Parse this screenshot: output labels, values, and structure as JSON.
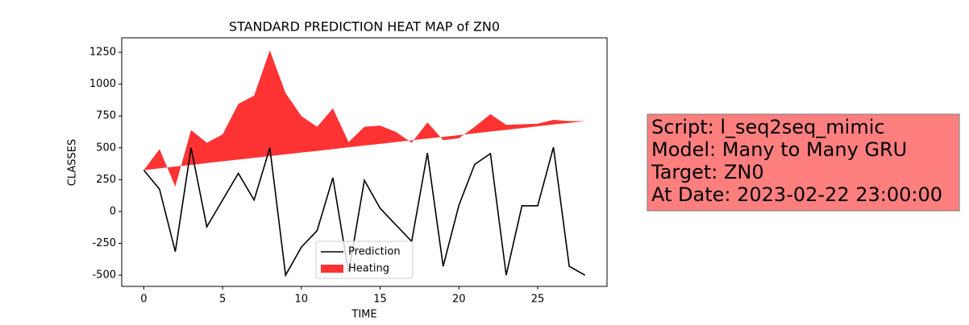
{
  "chart_data": {
    "type": "line-area",
    "title": "STANDARD PREDICTION HEAT MAP of ZN0",
    "x_label": "TIME",
    "y_label": "CLASSES",
    "x": [
      0,
      1,
      2,
      3,
      4,
      5,
      6,
      7,
      8,
      9,
      10,
      11,
      12,
      13,
      14,
      15,
      16,
      17,
      18,
      19,
      20,
      21,
      22,
      23,
      24,
      25,
      26,
      27,
      28
    ],
    "series": [
      {
        "name": "Prediction",
        "color": "#000000",
        "kind": "line",
        "values": [
          325,
          175,
          -315,
          500,
          -120,
          90,
          300,
          90,
          500,
          -500,
          -280,
          -150,
          265,
          -480,
          245,
          25,
          -105,
          -235,
          460,
          -430,
          50,
          370,
          455,
          -500,
          45,
          45,
          505,
          -430,
          -500
        ]
      },
      {
        "name": "Heating",
        "color": "#ff0000",
        "kind": "area",
        "values": [
          325,
          490,
          195,
          640,
          540,
          605,
          845,
          910,
          1265,
          930,
          750,
          665,
          810,
          545,
          665,
          675,
          625,
          540,
          700,
          560,
          575,
          665,
          765,
          680,
          685,
          690,
          720,
          710,
          710
        ],
        "baseline": [
          325,
          339,
          353,
          366,
          380,
          394,
          408,
          421,
          435,
          449,
          463,
          476,
          490,
          504,
          518,
          531,
          545,
          559,
          573,
          586,
          600,
          614,
          628,
          641,
          655,
          669,
          683,
          696,
          710
        ]
      }
    ],
    "xlim": [
      -1.4,
      29.4
    ],
    "xticks": [
      0,
      5,
      10,
      15,
      20,
      25
    ],
    "ylim": [
      -588,
      1364
    ],
    "yticks": [
      -500,
      -250,
      0,
      250,
      500,
      750,
      1000,
      1250
    ],
    "legend": "lower center",
    "annotation": [
      "Script: l_seq2seq_mimic",
      "Model: Many to Many GRU",
      "Target: ZN0",
      "At Date: 2023-02-22 23:00:00"
    ]
  }
}
